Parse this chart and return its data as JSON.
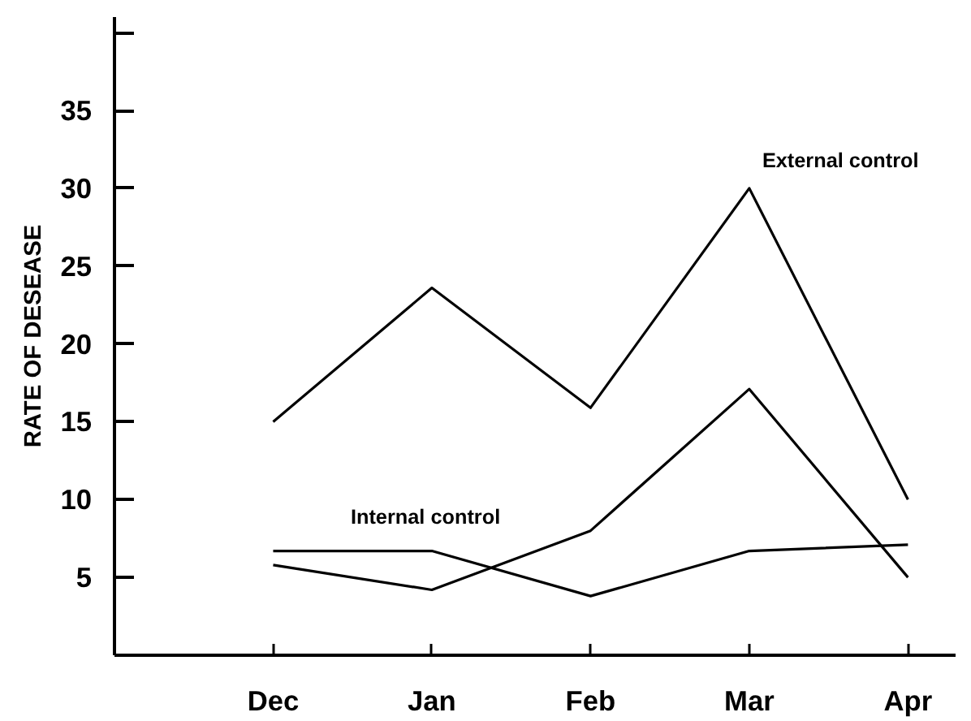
{
  "chart_data": {
    "type": "line",
    "ylabel": "RATE OF DESEASE",
    "categories": [
      "Dec",
      "Jan",
      "Feb",
      "Mar",
      "Apr"
    ],
    "series": [
      {
        "name": "External control",
        "color": "#000000",
        "values": [
          15,
          23.6,
          15.9,
          30,
          10
        ]
      },
      {
        "name": "Internal control",
        "color": "#000000",
        "values": [
          6.7,
          6.7,
          3.8,
          6.7,
          7.1
        ]
      },
      {
        "color": "#000000",
        "values": [
          5.8,
          4.2,
          8.0,
          17.1,
          5.0
        ]
      }
    ],
    "ylim": [
      0,
      41
    ],
    "yticks": [
      5,
      10,
      15,
      20,
      25,
      30,
      35,
      {
        "value": 40,
        "label": null
      }
    ],
    "marker": "none",
    "line_style": "solid"
  }
}
